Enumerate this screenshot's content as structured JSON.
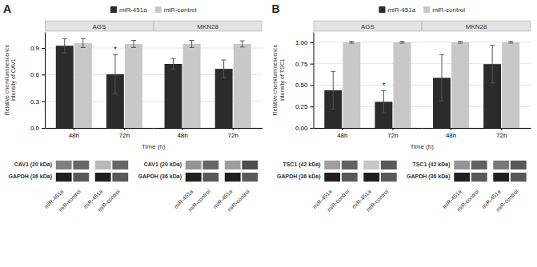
{
  "chart_data": [
    {
      "type": "bar",
      "title": "A",
      "ylabel": "Relative chemiluminescence\nintensity of CAV1",
      "xlabel": "Time (h)",
      "categories": [
        "48h",
        "72h"
      ],
      "ylim": [
        0.0,
        1.08
      ],
      "yticks": [
        {
          "value": 0.0,
          "label": "0.0"
        },
        0.3,
        0.6,
        0.9
      ],
      "grid": true,
      "legend": "top",
      "facets": [
        {
          "title": "AGS",
          "series": [
            {
              "name": "miR-451a",
              "color": "#2b2b2b",
              "values": [
                0.925,
                0.605
              ],
              "errors": [
                0.08,
                0.22
              ],
              "annotations": [
                null,
                "*"
              ]
            },
            {
              "name": "miR-control",
              "color": "#c8c8c8",
              "values": [
                0.955,
                0.945
              ],
              "errors": [
                0.05,
                0.04
              ]
            }
          ]
        },
        {
          "title": "MKN28",
          "series": [
            {
              "name": "miR-451a",
              "color": "#2b2b2b",
              "values": [
                0.72,
                0.665
              ],
              "errors": [
                0.06,
                0.1
              ]
            },
            {
              "name": "miR-control",
              "color": "#c8c8c8",
              "values": [
                0.945,
                0.945
              ],
              "errors": [
                0.04,
                0.035
              ]
            }
          ]
        }
      ],
      "blot": {
        "lanes": [
          "miR-451a",
          "miR-control"
        ],
        "rows": [
          {
            "label": "CAV1 (20 kDa)",
            "values": [
              [
                0.5,
                0.6
              ],
              [
                0.28,
                0.6
              ],
              [
                0.42,
                0.6
              ],
              [
                0.38,
                0.7
              ]
            ]
          },
          {
            "label": "GAPDH (36 kDa)",
            "values": [
              [
                0.88,
                0.65
              ],
              [
                0.88,
                0.65
              ],
              [
                0.88,
                0.65
              ],
              [
                0.88,
                0.65
              ]
            ]
          }
        ]
      }
    },
    {
      "type": "bar",
      "title": "B",
      "ylabel": "Relative chemiluminescence\nintensity of TSC1",
      "xlabel": "Time (h)",
      "categories": [
        "48h",
        "72h"
      ],
      "ylim": [
        0.0,
        1.12
      ],
      "yticks": [
        {
          "value": 0.0,
          "label": "0.00"
        },
        0.25,
        {
          "value": 0.5,
          "label": "0.50"
        },
        0.75,
        {
          "value": 1.0,
          "label": "1.00"
        }
      ],
      "grid": true,
      "legend": "top",
      "facets": [
        {
          "title": "AGS",
          "series": [
            {
              "name": "miR-451a",
              "color": "#2b2b2b",
              "values": [
                0.44,
                0.305
              ],
              "errors": [
                0.22,
                0.13
              ],
              "annotations": [
                null,
                "*"
              ]
            },
            {
              "name": "miR-control",
              "color": "#c8c8c8",
              "values": [
                1.0,
                1.0
              ],
              "errors": [
                0.01,
                0.01
              ]
            }
          ]
        },
        {
          "title": "MKN28",
          "series": [
            {
              "name": "miR-451a",
              "color": "#2b2b2b",
              "values": [
                0.585,
                0.745
              ],
              "errors": [
                0.27,
                0.22
              ]
            },
            {
              "name": "miR-control",
              "color": "#c8c8c8",
              "values": [
                1.0,
                1.0
              ],
              "errors": [
                0.01,
                0.01
              ]
            }
          ]
        }
      ],
      "blot": {
        "lanes": [
          "miR-451a",
          "miR-control"
        ],
        "rows": [
          {
            "label": "TSC1 (42 kDa)",
            "values": [
              [
                0.38,
                0.62
              ],
              [
                0.22,
                0.65
              ],
              [
                0.42,
                0.62
              ],
              [
                0.52,
                0.65
              ]
            ]
          },
          {
            "label": "GAPDH (36 kDa)",
            "values": [
              [
                0.88,
                0.65
              ],
              [
                0.88,
                0.65
              ],
              [
                0.88,
                0.65
              ],
              [
                0.88,
                0.65
              ]
            ]
          }
        ]
      }
    }
  ]
}
